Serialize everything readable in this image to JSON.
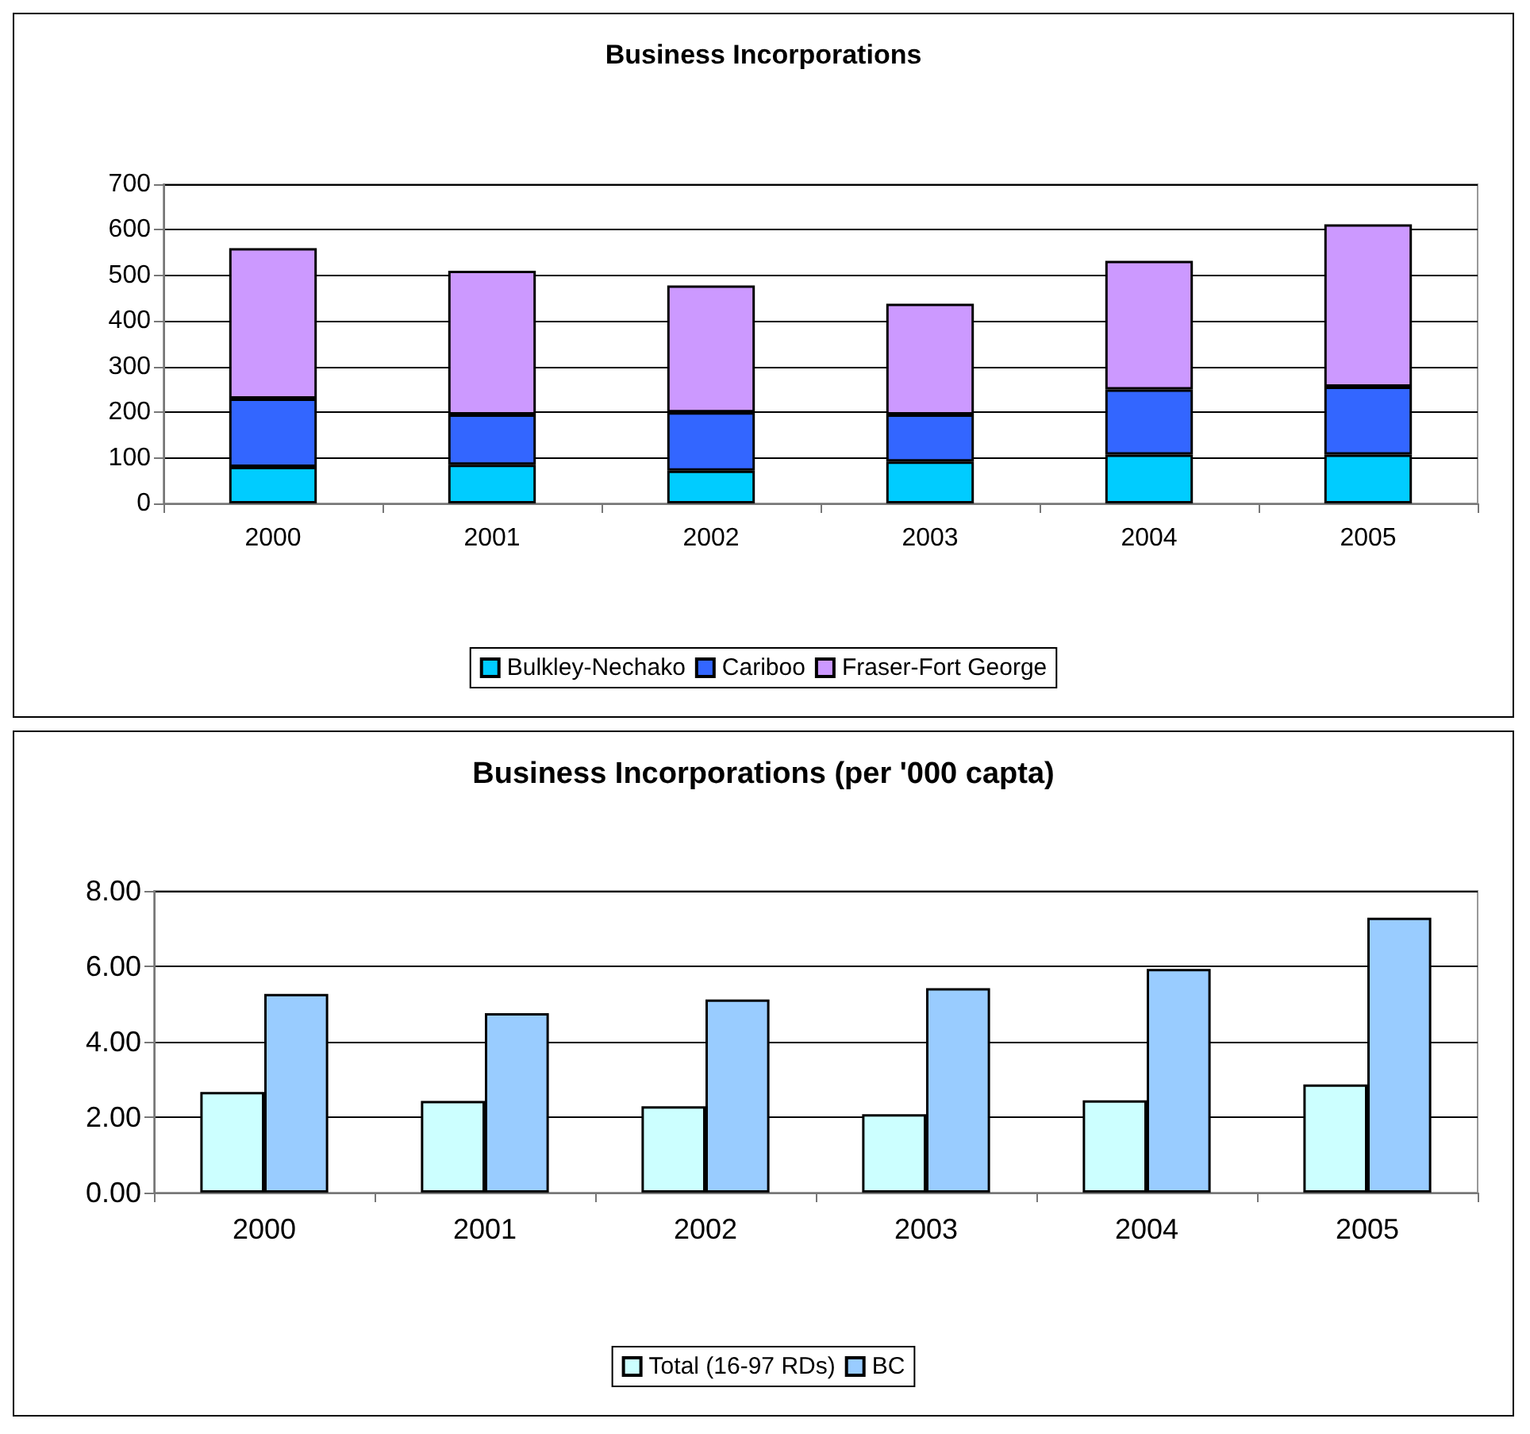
{
  "chart_data": [
    {
      "type": "bar",
      "title": "Business Incorporations",
      "categories": [
        "2000",
        "2001",
        "2002",
        "2003",
        "2004",
        "2005"
      ],
      "stacked": true,
      "series": [
        {
          "name": "Bulkley-Nechako",
          "color": "#00ccff",
          "values": [
            80,
            85,
            72,
            92,
            107,
            107
          ]
        },
        {
          "name": "Cariboo",
          "color": "#3366ff",
          "values": [
            150,
            110,
            128,
            103,
            143,
            149
          ]
        },
        {
          "name": "Fraser-Fort George",
          "color": "#cc99ff",
          "values": [
            330,
            315,
            278,
            243,
            282,
            356
          ]
        }
      ],
      "ylim": [
        0,
        700
      ],
      "yticks": [
        0,
        100,
        200,
        300,
        400,
        500,
        600,
        700
      ],
      "grid": "y",
      "legend": "bottom"
    },
    {
      "type": "bar",
      "title": "Business Incorporations (per '000 capta)",
      "categories": [
        "2000",
        "2001",
        "2002",
        "2003",
        "2004",
        "2005"
      ],
      "series": [
        {
          "name": "Total (16-97 RDs)",
          "color": "#ccffff",
          "values": [
            2.67,
            2.43,
            2.29,
            2.08,
            2.45,
            2.87
          ]
        },
        {
          "name": "BC",
          "color": "#99ccff",
          "values": [
            5.27,
            4.76,
            5.12,
            5.42,
            5.93,
            7.29
          ]
        }
      ],
      "ylim": [
        0,
        8
      ],
      "yticks": [
        {
          "value": 0,
          "label": "0.00"
        },
        {
          "value": 2,
          "label": "2.00"
        },
        {
          "value": 4,
          "label": "4.00"
        },
        {
          "value": 6,
          "label": "6.00"
        },
        {
          "value": 8,
          "label": "8.00"
        }
      ],
      "grid": "y",
      "legend": "bottom"
    }
  ]
}
